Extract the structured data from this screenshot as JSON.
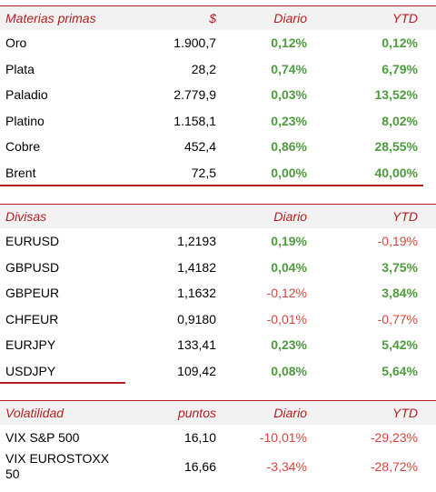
{
  "materias": {
    "headers": {
      "name": "Materias primas",
      "value": "$",
      "daily": "Diario",
      "ytd": "YTD"
    },
    "rows": [
      {
        "name": "Oro",
        "value": "1.900,7",
        "daily": "0,12%",
        "ytd": "0,12%"
      },
      {
        "name": "Plata",
        "value": "28,2",
        "daily": "0,74%",
        "ytd": "6,79%"
      },
      {
        "name": "Paladio",
        "value": "2.779,9",
        "daily": "0,03%",
        "ytd": "13,52%"
      },
      {
        "name": "Platino",
        "value": "1.158,1",
        "daily": "0,23%",
        "ytd": "8,02%"
      },
      {
        "name": "Cobre",
        "value": "452,4",
        "daily": "0,86%",
        "ytd": "28,55%"
      },
      {
        "name": "Brent",
        "value": "72,5",
        "daily": "0,00%",
        "ytd": "40,00%"
      }
    ]
  },
  "divisas": {
    "headers": {
      "name": "Divisas",
      "value": "",
      "daily": "Diario",
      "ytd": "YTD"
    },
    "rows": [
      {
        "name": "EURUSD",
        "value": "1,2193",
        "daily": "0,19%",
        "ytd": "-0,19%"
      },
      {
        "name": "GBPUSD",
        "value": "1,4182",
        "daily": "0,04%",
        "ytd": "3,75%"
      },
      {
        "name": "GBPEUR",
        "value": "1,1632",
        "daily": "-0,12%",
        "ytd": "3,84%"
      },
      {
        "name": "CHFEUR",
        "value": "0,9180",
        "daily": "-0,01%",
        "ytd": "-0,77%"
      },
      {
        "name": "EURJPY",
        "value": "133,41",
        "daily": "0,23%",
        "ytd": "5,42%"
      },
      {
        "name": "USDJPY",
        "value": "109,42",
        "daily": "0,08%",
        "ytd": "5,64%"
      }
    ]
  },
  "volatilidad": {
    "headers": {
      "name": "Volatilidad",
      "value": "puntos",
      "daily": "Diario",
      "ytd": "YTD"
    },
    "rows": [
      {
        "name": "VIX S&P 500",
        "value": "16,10",
        "daily": "-10,01%",
        "ytd": "-29,23%"
      },
      {
        "name": "VIX EUROSTOXX 50",
        "value": "16,66",
        "daily": "-3,34%",
        "ytd": "-28,72%"
      }
    ]
  },
  "colors": {
    "accent": "#b21e23",
    "positive": "#4e9a3f",
    "negative": "#d9443f",
    "header_bg": "#f2f2f2"
  }
}
